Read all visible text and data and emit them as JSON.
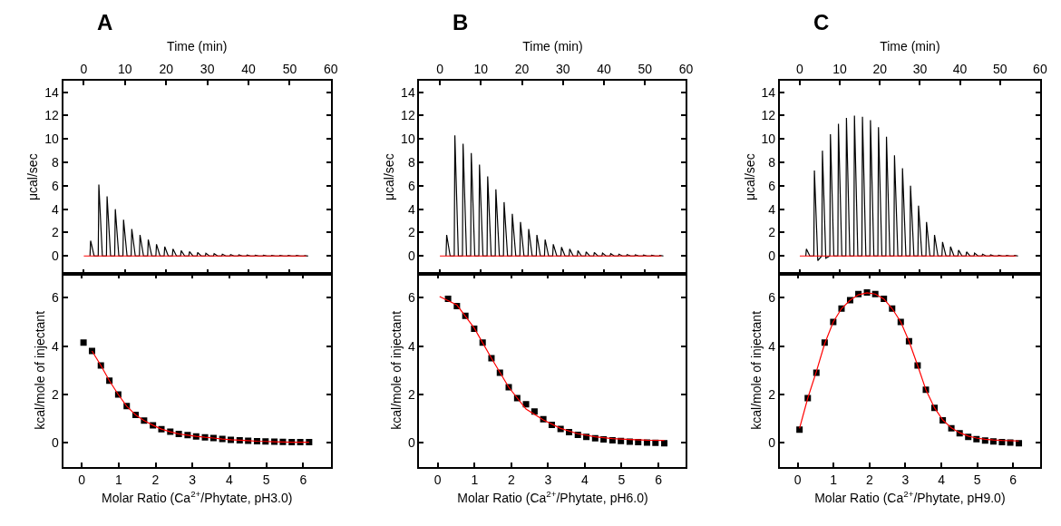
{
  "chart_data": [
    {
      "type": "line",
      "title": "A",
      "xlabel": "Time (min)",
      "ylabel": "μcal/sec",
      "xlim": [
        -5,
        60
      ],
      "xticks": [
        0,
        10,
        20,
        30,
        40,
        50,
        60
      ],
      "ylim": [
        -1.5,
        15
      ],
      "yticks": [
        0,
        2,
        4,
        6,
        8,
        10,
        12,
        14
      ],
      "marker": "none",
      "series": [
        {
          "color": "#000000",
          "x": [
            1.5,
            1.65,
            2.5,
            3.5,
            3.65,
            4.5,
            5.5,
            5.65,
            6.5,
            7.5,
            7.65,
            8.5,
            9.5,
            9.65,
            10.5,
            11.5,
            11.65,
            12.5,
            13.5,
            13.65,
            14.5,
            15.5,
            15.65,
            16.5,
            17.5,
            17.65,
            18.5,
            19.5,
            19.65,
            20.5,
            21.5,
            21.65,
            22.5,
            23.5,
            23.65,
            24.5,
            25.5,
            25.65,
            26.5,
            27.5,
            27.65,
            28.5,
            29.5,
            29.65,
            30.5,
            31.5,
            31.65,
            32.5,
            33.5,
            33.65,
            34.5,
            35.5,
            35.65,
            36.5,
            37.5,
            37.65,
            38.5,
            39.5,
            39.65,
            40.5,
            41.5,
            41.65,
            42.5,
            43.5,
            43.65,
            44.5,
            45.5,
            45.65,
            46.5,
            47.5,
            47.65,
            48.5,
            49.5,
            49.65,
            50.5,
            51.5,
            51.65,
            52.5,
            53.5,
            53.65,
            54.5
          ],
          "values": [
            0,
            1.3,
            0,
            0,
            6.1,
            0,
            0,
            5.1,
            0,
            0,
            4.0,
            0,
            0,
            3.1,
            0,
            0,
            2.3,
            0,
            0,
            1.8,
            0,
            0,
            1.4,
            0,
            0,
            1.0,
            0,
            0,
            0.8,
            0,
            0,
            0.6,
            0,
            0,
            0.45,
            0,
            0,
            0.37,
            0,
            0,
            0.3,
            0,
            0,
            0.23,
            0,
            0,
            0.2,
            0,
            0,
            0.15,
            0,
            0,
            0.12,
            0,
            0,
            0.1,
            0,
            0,
            0.08,
            0,
            0,
            0.07,
            0,
            0,
            0.06,
            0,
            0,
            0.05,
            0,
            0,
            0.05,
            0,
            0,
            0.04,
            0,
            0,
            0.04,
            0,
            0,
            0.03,
            0
          ]
        },
        {
          "color": "#ff0000",
          "x": [
            0,
            54
          ],
          "values": [
            0,
            0
          ]
        }
      ]
    },
    {
      "type": "scatter",
      "xlabel": "Molar Ratio (Ca$^{2+}$/Phytate, pH3.0)",
      "ylabel": "kcal/mole of injectant",
      "xlim": [
        -0.5,
        6.75
      ],
      "xticks": [
        0,
        1,
        2,
        3,
        4,
        5,
        6
      ],
      "ylim": [
        -1,
        7
      ],
      "yticks": [
        0,
        2,
        4,
        6
      ],
      "series": [
        {
          "color": "#000000",
          "marker": "square",
          "x": [
            0.05,
            0.28,
            0.52,
            0.75,
            0.99,
            1.22,
            1.46,
            1.69,
            1.93,
            2.16,
            2.4,
            2.63,
            2.87,
            3.1,
            3.34,
            3.57,
            3.81,
            4.04,
            4.28,
            4.51,
            4.75,
            4.98,
            5.22,
            5.45,
            5.69,
            5.92,
            6.16
          ],
          "values": [
            4.15,
            3.8,
            3.2,
            2.57,
            2.0,
            1.52,
            1.16,
            0.92,
            0.73,
            0.57,
            0.46,
            0.37,
            0.32,
            0.27,
            0.23,
            0.2,
            0.16,
            0.13,
            0.11,
            0.09,
            0.07,
            0.06,
            0.05,
            0.04,
            0.03,
            0.03,
            0.03
          ]
        },
        {
          "type": "line",
          "color": "#ff0000",
          "x": [
            0.28,
            0.52,
            0.75,
            0.99,
            1.22,
            1.46,
            1.69,
            1.93,
            2.16,
            2.4,
            2.63,
            2.87,
            3.1,
            3.34,
            3.57,
            3.81,
            4.04,
            4.28,
            4.51,
            4.75,
            4.98,
            5.22,
            5.45,
            5.69,
            5.92,
            6.16
          ],
          "values": [
            3.8,
            3.2,
            2.57,
            2.0,
            1.52,
            1.16,
            0.92,
            0.73,
            0.57,
            0.46,
            0.37,
            0.32,
            0.27,
            0.23,
            0.2,
            0.16,
            0.13,
            0.11,
            0.09,
            0.07,
            0.06,
            0.05,
            0.04,
            0.03,
            0.03,
            0.03
          ]
        }
      ]
    },
    {
      "type": "line",
      "title": "B",
      "xlabel": "Time (min)",
      "ylabel": "μcal/sec",
      "xlim": [
        -5,
        60
      ],
      "xticks": [
        0,
        10,
        20,
        30,
        40,
        50,
        60
      ],
      "ylim": [
        -1.5,
        15
      ],
      "yticks": [
        0,
        2,
        4,
        6,
        8,
        10,
        12,
        14
      ],
      "marker": "none",
      "series": [
        {
          "color": "#000000",
          "x": [
            1.5,
            1.65,
            2.5,
            3.5,
            3.65,
            4.5,
            5.5,
            5.65,
            6.5,
            7.5,
            7.65,
            8.5,
            9.5,
            9.65,
            10.5,
            11.5,
            11.65,
            12.5,
            13.5,
            13.65,
            14.5,
            15.5,
            15.65,
            16.5,
            17.5,
            17.65,
            18.5,
            19.5,
            19.65,
            20.5,
            21.5,
            21.65,
            22.5,
            23.5,
            23.65,
            24.5,
            25.5,
            25.65,
            26.5,
            27.5,
            27.65,
            28.5,
            29.5,
            29.65,
            30.5,
            31.5,
            31.65,
            32.5,
            33.5,
            33.65,
            34.5,
            35.5,
            35.65,
            36.5,
            37.5,
            37.65,
            38.5,
            39.5,
            39.65,
            40.5,
            41.5,
            41.65,
            42.5,
            43.5,
            43.65,
            44.5,
            45.5,
            45.65,
            46.5,
            47.5,
            47.65,
            48.5,
            49.5,
            49.65,
            50.5,
            51.5,
            51.65,
            52.5,
            53.5,
            53.65,
            54.5
          ],
          "values": [
            0,
            1.8,
            0,
            0,
            10.3,
            0,
            0,
            9.6,
            0,
            0,
            8.8,
            0,
            0,
            7.8,
            0,
            0,
            6.8,
            0,
            0,
            5.7,
            0,
            0,
            4.6,
            0,
            0,
            3.6,
            0,
            0,
            2.9,
            0,
            0,
            2.3,
            0,
            0,
            1.8,
            0,
            0,
            1.4,
            0,
            0,
            1.0,
            0,
            0,
            0.75,
            0,
            0,
            0.6,
            0,
            0,
            0.45,
            0,
            0,
            0.35,
            0,
            0,
            0.3,
            0,
            0,
            0.25,
            0,
            0,
            0.2,
            0,
            0,
            0.15,
            0,
            0,
            0.12,
            0,
            0,
            0.1,
            0,
            0,
            0.08,
            0,
            0,
            0.06,
            0,
            0,
            0.05,
            0
          ]
        },
        {
          "color": "#ff0000",
          "x": [
            0,
            54
          ],
          "values": [
            0,
            0
          ]
        }
      ]
    },
    {
      "type": "scatter",
      "xlabel": "Molar Ratio (Ca$^{2+}$/Phytate, pH6.0)",
      "ylabel": "kcal/mole of injectant",
      "xlim": [
        -0.5,
        6.75
      ],
      "xticks": [
        0,
        1,
        2,
        3,
        4,
        5,
        6
      ],
      "ylim": [
        -1,
        7
      ],
      "yticks": [
        0,
        2,
        4,
        6
      ],
      "series": [
        {
          "color": "#000000",
          "marker": "square",
          "x": [
            0.28,
            0.52,
            0.75,
            0.99,
            1.22,
            1.46,
            1.69,
            1.93,
            2.16,
            2.4,
            2.63,
            2.87,
            3.1,
            3.34,
            3.57,
            3.81,
            4.04,
            4.28,
            4.51,
            4.75,
            4.98,
            5.22,
            5.45,
            5.69,
            5.92,
            6.16
          ],
          "values": [
            5.95,
            5.65,
            5.25,
            4.72,
            4.15,
            3.5,
            2.9,
            2.3,
            1.85,
            1.6,
            1.3,
            0.98,
            0.74,
            0.58,
            0.44,
            0.33,
            0.25,
            0.19,
            0.14,
            0.11,
            0.08,
            0.05,
            0.03,
            0.01,
            0,
            -0.01
          ]
        },
        {
          "type": "line",
          "color": "#ff0000",
          "x": [
            0.05,
            0.52,
            0.99,
            1.46,
            1.93,
            2.4,
            2.87,
            3.34,
            3.81,
            4.28,
            4.75,
            5.22,
            5.69,
            6.16
          ],
          "values": [
            6.05,
            5.7,
            4.75,
            3.5,
            2.3,
            1.4,
            0.95,
            0.6,
            0.38,
            0.25,
            0.18,
            0.14,
            0.11,
            0.1
          ]
        }
      ]
    },
    {
      "type": "line",
      "title": "C",
      "xlabel": "Time (min)",
      "ylabel": "μcal/sec",
      "xlim": [
        -5,
        60
      ],
      "xticks": [
        0,
        10,
        20,
        30,
        40,
        50,
        60
      ],
      "ylim": [
        -1.5,
        15
      ],
      "yticks": [
        0,
        2,
        4,
        6,
        8,
        10,
        12,
        14
      ],
      "marker": "none",
      "series": [
        {
          "color": "#000000",
          "x": [
            1.5,
            1.65,
            2.5,
            3.5,
            3.65,
            4.5,
            5.5,
            5.65,
            6.5,
            7.5,
            7.65,
            8.5,
            9.5,
            9.65,
            10.5,
            11.5,
            11.65,
            12.5,
            13.5,
            13.65,
            14.5,
            15.5,
            15.65,
            16.5,
            17.5,
            17.65,
            18.5,
            19.5,
            19.65,
            20.5,
            21.5,
            21.65,
            22.5,
            23.5,
            23.65,
            24.5,
            25.5,
            25.65,
            26.5,
            27.5,
            27.65,
            28.5,
            29.5,
            29.65,
            30.5,
            31.5,
            31.65,
            32.5,
            33.5,
            33.65,
            34.5,
            35.5,
            35.65,
            36.5,
            37.5,
            37.65,
            38.5,
            39.5,
            39.65,
            40.5,
            41.5,
            41.65,
            42.5,
            43.5,
            43.65,
            44.5,
            45.5,
            45.65,
            46.5,
            47.5,
            47.65,
            48.5,
            49.5,
            49.65,
            50.5,
            51.5,
            51.65,
            52.5,
            53.5,
            53.65,
            54.5
          ],
          "values": [
            0,
            0.6,
            0,
            0,
            7.3,
            -0.4,
            0,
            9.0,
            -0.2,
            0,
            10.4,
            0,
            0,
            11.3,
            0,
            0,
            11.8,
            0,
            0,
            12.0,
            0,
            0,
            11.9,
            0,
            0,
            11.6,
            0,
            0,
            11.0,
            0,
            0,
            10.2,
            0,
            0,
            8.6,
            0,
            0,
            7.5,
            0,
            0,
            6.0,
            0,
            0,
            4.3,
            0,
            0,
            2.9,
            0,
            0,
            1.8,
            0,
            0,
            1.2,
            0,
            0,
            0.8,
            0,
            0,
            0.5,
            0,
            0,
            0.35,
            0,
            0,
            0.25,
            0,
            0,
            0.15,
            0,
            0,
            0.1,
            0,
            0,
            0.07,
            0,
            0,
            0.05,
            0,
            0,
            0.04,
            0
          ]
        },
        {
          "color": "#ff0000",
          "x": [
            0,
            54
          ],
          "values": [
            0,
            0
          ]
        }
      ]
    },
    {
      "type": "scatter",
      "xlabel": "Molar Ratio (Ca$^{2+}$/Phytate, pH9.0)",
      "ylabel": "kcal/mole of injectant",
      "xlim": [
        -0.5,
        6.75
      ],
      "xticks": [
        0,
        1,
        2,
        3,
        4,
        5,
        6
      ],
      "ylim": [
        -1,
        7
      ],
      "yticks": [
        0,
        2,
        4,
        6
      ],
      "series": [
        {
          "color": "#000000",
          "marker": "square",
          "x": [
            0.05,
            0.28,
            0.52,
            0.75,
            0.99,
            1.22,
            1.46,
            1.69,
            1.93,
            2.16,
            2.4,
            2.63,
            2.87,
            3.1,
            3.34,
            3.57,
            3.81,
            4.04,
            4.28,
            4.51,
            4.75,
            4.98,
            5.22,
            5.45,
            5.69,
            5.92,
            6.16
          ],
          "values": [
            0.55,
            1.85,
            2.9,
            4.15,
            5.0,
            5.55,
            5.9,
            6.15,
            6.22,
            6.15,
            5.95,
            5.55,
            5.0,
            4.2,
            3.2,
            2.2,
            1.45,
            0.93,
            0.6,
            0.4,
            0.25,
            0.15,
            0.1,
            0.06,
            0.03,
            0.01,
            -0.01
          ]
        },
        {
          "type": "line",
          "color": "#ff0000",
          "x": [
            0.05,
            0.28,
            0.52,
            0.75,
            0.99,
            1.22,
            1.46,
            1.69,
            1.93,
            2.16,
            2.4,
            2.63,
            2.87,
            3.1,
            3.34,
            3.57,
            3.81,
            4.04,
            4.28,
            4.51,
            4.75,
            4.98,
            5.22,
            5.45,
            5.69,
            5.92,
            6.16
          ],
          "values": [
            0.6,
            1.85,
            2.95,
            4.1,
            5.0,
            5.55,
            5.9,
            6.12,
            6.2,
            6.15,
            5.95,
            5.55,
            5.0,
            4.2,
            3.2,
            2.2,
            1.45,
            0.95,
            0.62,
            0.42,
            0.28,
            0.2,
            0.15,
            0.12,
            0.1,
            0.09,
            0.08
          ]
        }
      ]
    }
  ]
}
